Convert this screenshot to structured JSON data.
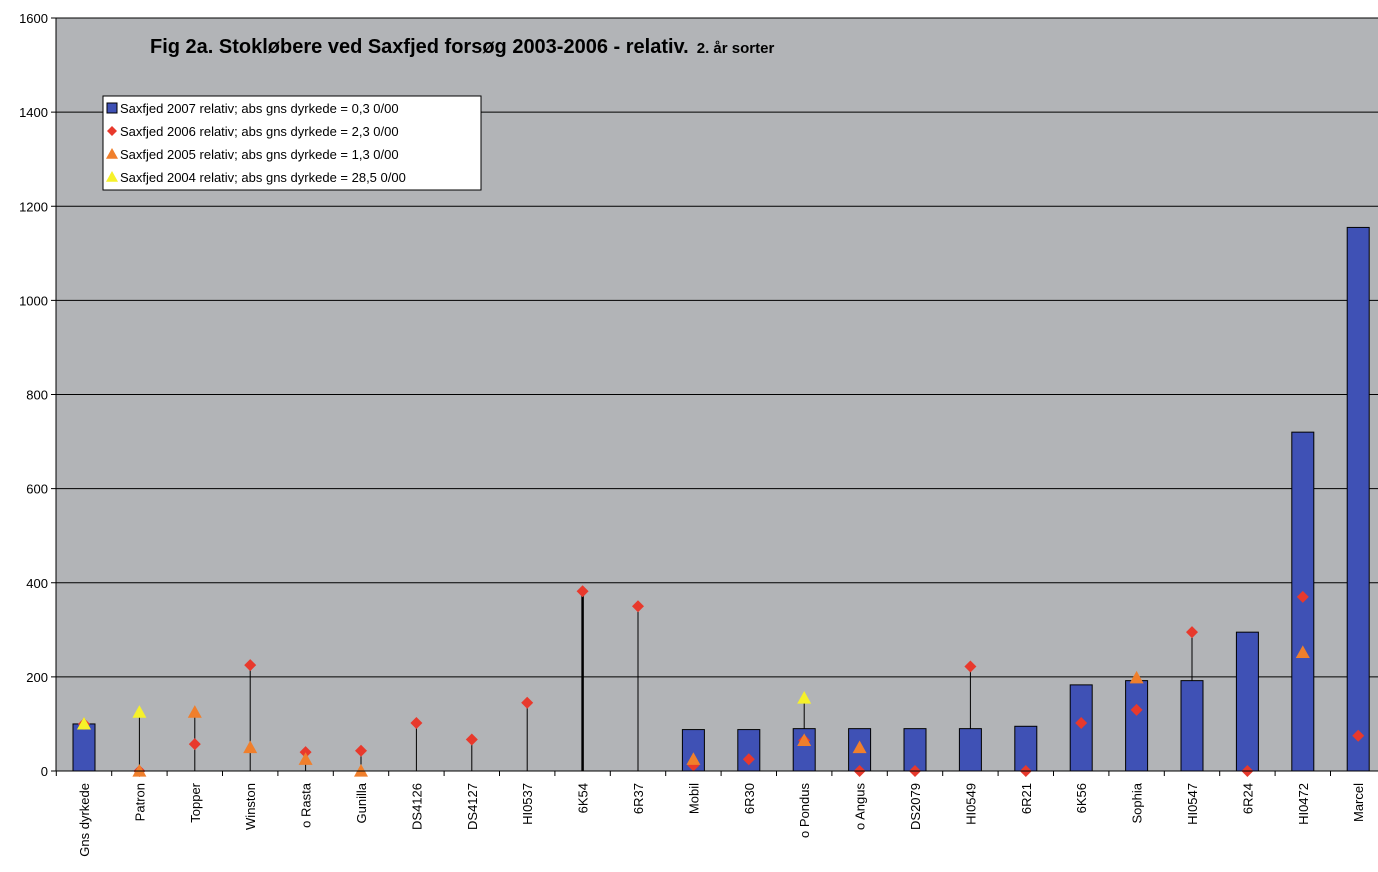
{
  "chart_data": {
    "type": "bar",
    "title": "Fig 2a. Stokløbere ved Saxfjed forsøg 2003-2006 - relativ.",
    "subtitle": "2. år sorter",
    "xlabel": "",
    "ylabel": "",
    "ylim": [
      0,
      1600
    ],
    "yticks": [
      0,
      200,
      400,
      600,
      800,
      1000,
      1200,
      1400,
      1600
    ],
    "grid": true,
    "legend_position": "top-left",
    "categories": [
      "Gns dyrkede",
      "Patron",
      "Topper",
      "Winston",
      "o Rasta",
      "Gunilla",
      "DS4126",
      "DS4127",
      "HI0537",
      "6K54",
      "6R37",
      "Mobil",
      "6R30",
      "o Pondus",
      "o Angus",
      "DS2079",
      "HI0549",
      "6R21",
      "6K56",
      "Sophia",
      "HI0547",
      "6R24",
      "HI0472",
      "Marcel"
    ],
    "series": [
      {
        "name": "Saxfjed 2007 relativ; abs gns dyrkede = 0,3 0/00",
        "marker": "bar",
        "color": "#3f51b5",
        "values": [
          100,
          null,
          null,
          null,
          null,
          null,
          null,
          null,
          null,
          null,
          null,
          88,
          88,
          90,
          90,
          90,
          90,
          95,
          183,
          192,
          192,
          295,
          720,
          1155
        ]
      },
      {
        "name": "Saxfjed 2006 relativ; abs gns dyrkede = 2,3 0/00",
        "marker": "diamond",
        "color": "#e8392c",
        "values": [
          100,
          0,
          57,
          225,
          40,
          43,
          102,
          67,
          145,
          382,
          350,
          12,
          25,
          65,
          0,
          0,
          222,
          0,
          102,
          130,
          295,
          0,
          370,
          75
        ]
      },
      {
        "name": "Saxfjed 2005 relativ; abs gns dyrkede = 1,3 0/00",
        "marker": "triangle",
        "color": "#f07f2c",
        "values": [
          100,
          0,
          125,
          50,
          25,
          0,
          null,
          null,
          null,
          null,
          null,
          25,
          null,
          65,
          50,
          null,
          null,
          null,
          null,
          198,
          null,
          null,
          252,
          null
        ]
      },
      {
        "name": "Saxfjed 2004 relativ; abs gns dyrkede  = 28,5 0/00",
        "marker": "triangle",
        "color": "#f6f12a",
        "values": [
          100,
          125,
          null,
          null,
          null,
          null,
          null,
          null,
          null,
          null,
          null,
          null,
          null,
          155,
          null,
          null,
          null,
          null,
          null,
          null,
          null,
          null,
          null,
          null
        ]
      }
    ],
    "colors": {
      "plot_background": "#b2b4b7",
      "gridline": "#000000",
      "stem": "#000000"
    }
  }
}
